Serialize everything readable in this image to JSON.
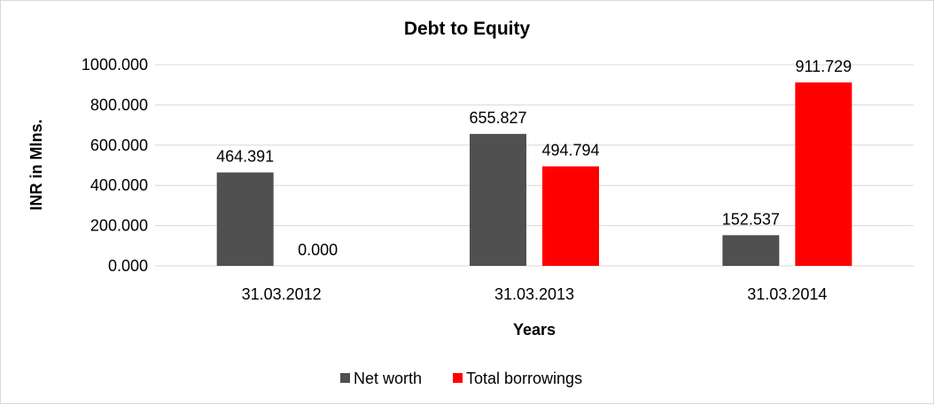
{
  "chart_data": {
    "type": "bar",
    "title": "Debt to Equity",
    "xlabel": "Years",
    "ylabel": "INR in Mlns.",
    "categories": [
      "31.03.2012",
      "31.03.2013",
      "31.03.2014"
    ],
    "series": [
      {
        "name": "Net worth",
        "color": "#505050",
        "values": [
          464.391,
          655.827,
          152.537
        ],
        "labels": [
          "464.391",
          "655.827",
          "152.537"
        ]
      },
      {
        "name": "Total borrowings",
        "color": "#ff0000",
        "values": [
          0.0,
          494.794,
          911.729
        ],
        "labels": [
          "0.000",
          "494.794",
          "911.729"
        ]
      }
    ],
    "ylim": [
      0,
      1000
    ],
    "yticks": [
      "0.000",
      "200.000",
      "400.000",
      "600.000",
      "800.000",
      "1000.000"
    ],
    "grid": true,
    "legend": "bottom"
  }
}
